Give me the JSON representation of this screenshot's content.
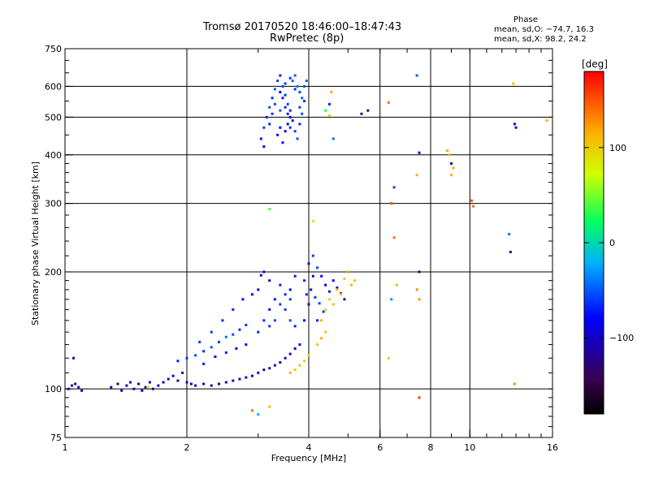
{
  "title": {
    "line1": "Tromsø 20170520 18:46:00–18:47:43",
    "line2": "RwPretec (8p)"
  },
  "phase_box": {
    "heading": "Phase",
    "line_o": "mean, sd,O: −74.7, 16.3",
    "line_x": "mean, sd,X:  98.2, 24.2"
  },
  "colorbar": {
    "unit": "[deg]",
    "min": -180,
    "max": 180,
    "ticks": [
      {
        "value": 100,
        "label": "100"
      },
      {
        "value": 0,
        "label": "0"
      },
      {
        "value": -100,
        "label": "−100"
      }
    ]
  },
  "chart_data": {
    "type": "scatter",
    "title": "Tromsø 20170520 18:46:00–18:47:43",
    "subtitle": "RwPretec (8p)",
    "xlabel": "Frequency [MHz]",
    "ylabel": "Stationary phase Virtual Height [km]",
    "xscale": "log",
    "yscale": "log",
    "xlim": [
      1,
      16
    ],
    "ylim": [
      75,
      750
    ],
    "grid": true,
    "x_ticks": [
      {
        "value": 1,
        "label": "1"
      },
      {
        "value": 2,
        "label": "2"
      },
      {
        "value": 4,
        "label": "4"
      },
      {
        "value": 6,
        "label": "6"
      },
      {
        "value": 8,
        "label": "8"
      },
      {
        "value": 10,
        "label": "10"
      },
      {
        "value": 16,
        "label": "16"
      }
    ],
    "y_ticks": [
      {
        "value": 75,
        "label": "75"
      },
      {
        "value": 100,
        "label": "100"
      },
      {
        "value": 200,
        "label": "200"
      },
      {
        "value": 300,
        "label": "300"
      },
      {
        "value": 400,
        "label": "400"
      },
      {
        "value": 500,
        "label": "500"
      },
      {
        "value": 600,
        "label": "600"
      },
      {
        "value": 750,
        "label": "750"
      }
    ],
    "x_grid": [
      2,
      4,
      6,
      8,
      10
    ],
    "y_grid": [
      100,
      200,
      300,
      400,
      500,
      600
    ],
    "point_fields": [
      "frequency_mhz",
      "height_km",
      "phase_deg"
    ],
    "points": [
      [
        1.02,
        100,
        -105
      ],
      [
        1.04,
        102,
        -110
      ],
      [
        1.06,
        103,
        -100
      ],
      [
        1.08,
        101,
        -95
      ],
      [
        1.1,
        99,
        -108
      ],
      [
        1.3,
        101,
        -110
      ],
      [
        1.35,
        103,
        -100
      ],
      [
        1.38,
        99,
        -115
      ],
      [
        1.42,
        102,
        -105
      ],
      [
        1.45,
        104,
        -98
      ],
      [
        1.48,
        100,
        -112
      ],
      [
        1.52,
        103,
        -104
      ],
      [
        1.55,
        99,
        -110
      ],
      [
        1.58,
        101,
        -100
      ],
      [
        1.62,
        104,
        -107
      ],
      [
        1.65,
        100,
        -115
      ],
      [
        1.7,
        102,
        -102
      ],
      [
        1.75,
        104,
        -110
      ],
      [
        1.8,
        106,
        -100
      ],
      [
        1.85,
        108,
        -96
      ],
      [
        1.9,
        105,
        -108
      ],
      [
        1.95,
        110,
        -100
      ],
      [
        2.0,
        104,
        -112
      ],
      [
        2.05,
        103,
        -105
      ],
      [
        2.1,
        102,
        -110
      ],
      [
        2.2,
        103,
        -100
      ],
      [
        2.3,
        102,
        -108
      ],
      [
        2.4,
        103,
        -112
      ],
      [
        2.5,
        104,
        -104
      ],
      [
        2.6,
        105,
        -110
      ],
      [
        2.7,
        106,
        -100
      ],
      [
        2.8,
        107,
        -106
      ],
      [
        2.9,
        108,
        -110
      ],
      [
        3.0,
        110,
        -104
      ],
      [
        3.1,
        112,
        -108
      ],
      [
        3.2,
        113,
        -100
      ],
      [
        3.3,
        115,
        -106
      ],
      [
        3.4,
        117,
        -110
      ],
      [
        3.5,
        120,
        -102
      ],
      [
        3.6,
        123,
        -108
      ],
      [
        3.7,
        127,
        -100
      ],
      [
        3.8,
        130,
        -96
      ],
      [
        1.9,
        118,
        -70
      ],
      [
        2.0,
        120,
        -60
      ],
      [
        2.1,
        122,
        -55
      ],
      [
        2.2,
        125,
        -65
      ],
      [
        2.3,
        128,
        -50
      ],
      [
        2.4,
        132,
        -60
      ],
      [
        2.5,
        136,
        -45
      ],
      [
        2.6,
        138,
        -55
      ],
      [
        2.7,
        142,
        -65
      ],
      [
        2.8,
        146,
        -60
      ],
      [
        2.2,
        116,
        -75
      ],
      [
        2.35,
        121,
        -80
      ],
      [
        2.5,
        124,
        -70
      ],
      [
        2.65,
        127,
        -85
      ],
      [
        2.8,
        130,
        -75
      ],
      [
        3.0,
        140,
        -70
      ],
      [
        3.1,
        150,
        -65
      ],
      [
        3.2,
        160,
        -80
      ],
      [
        3.3,
        170,
        -75
      ],
      [
        3.4,
        185,
        -70
      ],
      [
        3.5,
        160,
        -60
      ],
      [
        3.6,
        150,
        -55
      ],
      [
        3.7,
        145,
        -70
      ],
      [
        3.0,
        180,
        -85
      ],
      [
        3.1,
        200,
        -90
      ],
      [
        3.05,
        196,
        -95
      ],
      [
        3.2,
        190,
        -88
      ],
      [
        2.9,
        175,
        -80
      ],
      [
        3.6,
        180,
        -75
      ],
      [
        3.7,
        195,
        -72
      ],
      [
        3.4,
        165,
        -60
      ],
      [
        3.5,
        175,
        -68
      ],
      [
        3.6,
        170,
        -62
      ],
      [
        3.3,
        150,
        -58
      ],
      [
        3.2,
        145,
        -62
      ],
      [
        2.6,
        160,
        -70
      ],
      [
        2.75,
        170,
        -75
      ],
      [
        2.45,
        150,
        -66
      ],
      [
        2.3,
        140,
        -62
      ],
      [
        2.15,
        132,
        -64
      ],
      [
        3.9,
        150,
        -85
      ],
      [
        4.0,
        165,
        -95
      ],
      [
        4.05,
        180,
        -100
      ],
      [
        4.1,
        195,
        -105
      ],
      [
        4.0,
        210,
        -98
      ],
      [
        4.1,
        220,
        -60
      ],
      [
        4.2,
        205,
        -55
      ],
      [
        4.3,
        195,
        -80
      ],
      [
        4.4,
        185,
        -90
      ],
      [
        4.5,
        178,
        -72
      ],
      [
        4.6,
        190,
        -85
      ],
      [
        4.7,
        182,
        -95
      ],
      [
        4.8,
        176,
        -100
      ],
      [
        4.9,
        170,
        -92
      ],
      [
        3.95,
        175,
        -70
      ],
      [
        3.9,
        190,
        -65
      ],
      [
        4.15,
        172,
        -62
      ],
      [
        4.25,
        166,
        -58
      ],
      [
        4.35,
        158,
        -64
      ],
      [
        4.2,
        150,
        -70
      ],
      [
        4.5,
        170,
        100
      ],
      [
        4.6,
        165,
        110
      ],
      [
        4.7,
        180,
        105
      ],
      [
        4.8,
        175,
        95
      ],
      [
        4.9,
        192,
        100
      ],
      [
        5.0,
        200,
        120
      ],
      [
        5.1,
        185,
        110
      ],
      [
        5.2,
        190,
        105
      ],
      [
        4.4,
        160,
        95
      ],
      [
        4.3,
        150,
        115
      ],
      [
        3.7,
        112,
        105
      ],
      [
        3.8,
        115,
        110
      ],
      [
        3.9,
        118,
        100
      ],
      [
        4.0,
        122,
        95
      ],
      [
        3.6,
        110,
        112
      ],
      [
        4.2,
        130,
        105
      ],
      [
        4.3,
        135,
        118
      ],
      [
        4.4,
        140,
        100
      ],
      [
        3.1,
        470,
        -60
      ],
      [
        3.15,
        500,
        -70
      ],
      [
        3.2,
        530,
        -55
      ],
      [
        3.25,
        560,
        -65
      ],
      [
        3.3,
        590,
        -50
      ],
      [
        3.35,
        620,
        -60
      ],
      [
        3.4,
        640,
        -70
      ],
      [
        3.45,
        600,
        -55
      ],
      [
        3.5,
        570,
        -62
      ],
      [
        3.55,
        540,
        -58
      ],
      [
        3.6,
        520,
        -66
      ],
      [
        3.65,
        490,
        -72
      ],
      [
        3.7,
        460,
        -60
      ],
      [
        3.75,
        440,
        -52
      ],
      [
        3.8,
        480,
        -68
      ],
      [
        3.85,
        510,
        -56
      ],
      [
        3.9,
        550,
        -64
      ],
      [
        3.35,
        450,
        -80
      ],
      [
        3.4,
        470,
        -85
      ],
      [
        3.45,
        430,
        -75
      ],
      [
        3.5,
        460,
        -82
      ],
      [
        3.55,
        480,
        -78
      ],
      [
        3.6,
        500,
        -88
      ],
      [
        3.65,
        620,
        -45
      ],
      [
        3.7,
        640,
        -50
      ],
      [
        3.75,
        600,
        -40
      ],
      [
        3.8,
        580,
        -55
      ],
      [
        3.85,
        560,
        -48
      ],
      [
        3.3,
        540,
        -58
      ],
      [
        3.25,
        510,
        -62
      ],
      [
        3.2,
        480,
        -70
      ],
      [
        3.4,
        520,
        -52
      ],
      [
        3.5,
        610,
        -58
      ],
      [
        3.6,
        630,
        -62
      ],
      [
        3.7,
        590,
        -66
      ],
      [
        3.8,
        530,
        -60
      ],
      [
        3.9,
        600,
        -55
      ],
      [
        3.95,
        620,
        -50
      ],
      [
        3.05,
        440,
        -75
      ],
      [
        3.1,
        420,
        -80
      ],
      [
        3.4,
        580,
        -75
      ],
      [
        3.45,
        560,
        -70
      ],
      [
        3.5,
        530,
        -68
      ],
      [
        3.55,
        510,
        -72
      ],
      [
        3.6,
        470,
        -64
      ],
      [
        4.4,
        520,
        30
      ],
      [
        4.5,
        505,
        100
      ],
      [
        4.55,
        580,
        120
      ],
      [
        4.6,
        440,
        -40
      ],
      [
        4.5,
        540,
        -70
      ],
      [
        5.4,
        510,
        -120
      ],
      [
        5.6,
        520,
        -110
      ],
      [
        4.1,
        270,
        60
      ],
      [
        3.2,
        290,
        40
      ],
      [
        6.3,
        545,
        140
      ],
      [
        6.5,
        330,
        -60
      ],
      [
        6.4,
        300,
        150
      ],
      [
        6.5,
        245,
        140
      ],
      [
        6.6,
        185,
        110
      ],
      [
        6.4,
        170,
        -30
      ],
      [
        6.3,
        120,
        100
      ],
      [
        7.4,
        640,
        -50
      ],
      [
        7.5,
        405,
        -110
      ],
      [
        7.4,
        355,
        110
      ],
      [
        7.5,
        200,
        -120
      ],
      [
        7.4,
        180,
        130
      ],
      [
        7.5,
        170,
        125
      ],
      [
        7.5,
        95,
        160
      ],
      [
        8.8,
        410,
        120
      ],
      [
        8.9,
        400,
        110
      ],
      [
        9.0,
        380,
        -120
      ],
      [
        9.1,
        370,
        115
      ],
      [
        9.0,
        355,
        115
      ],
      [
        10.1,
        305,
        150
      ],
      [
        10.2,
        295,
        140
      ],
      [
        12.5,
        250,
        -40
      ],
      [
        12.6,
        225,
        -120
      ],
      [
        12.8,
        610,
        110
      ],
      [
        12.9,
        480,
        -90
      ],
      [
        13.0,
        470,
        -100
      ],
      [
        15.5,
        490,
        115
      ],
      [
        12.9,
        103,
        130
      ],
      [
        2.9,
        88,
        140
      ],
      [
        3.0,
        86,
        -20
      ],
      [
        3.2,
        90,
        110
      ],
      [
        1.6,
        101,
        100
      ],
      [
        1.05,
        120,
        -110
      ]
    ]
  }
}
